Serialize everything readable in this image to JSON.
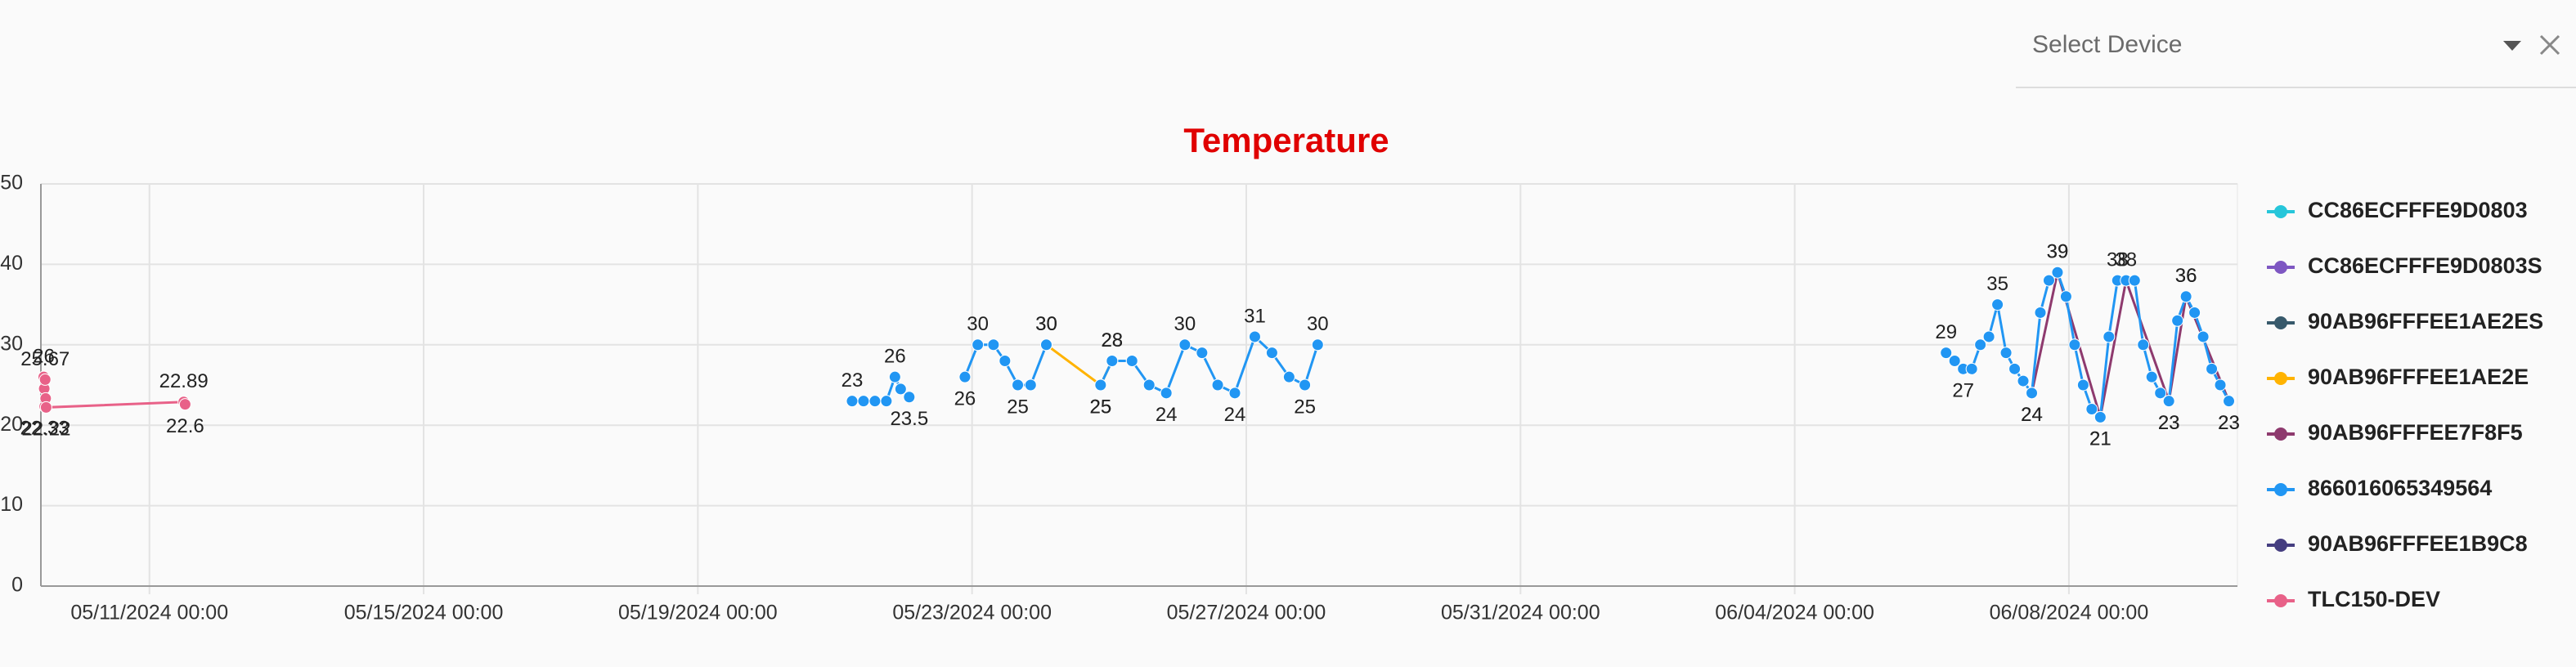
{
  "select_device": {
    "placeholder": "Select Device"
  },
  "chart_data": {
    "type": "line",
    "title": "Temperature",
    "ylim": [
      0,
      50
    ],
    "yticks": [
      0,
      10,
      20,
      30,
      40,
      50
    ],
    "grid": true,
    "xlim": [
      "05/09/2024 10:00",
      "06/10/2024 11:00"
    ],
    "xticks": [
      "05/11/2024 00:00",
      "05/15/2024 00:00",
      "05/19/2024 00:00",
      "05/23/2024 00:00",
      "05/27/2024 00:00",
      "05/31/2024 00:00",
      "06/04/2024 00:00",
      "06/08/2024 00:00"
    ],
    "legend": "right",
    "series": [
      {
        "name": "CC86ECFFFE9D0803",
        "color": "#26c6da",
        "x": [],
        "values": []
      },
      {
        "name": "CC86ECFFFE9D0803S",
        "color": "#7e57c2",
        "x": [],
        "values": []
      },
      {
        "name": "90AB96FFFEE1AE2ES",
        "color": "#37596b",
        "x": [],
        "values": []
      },
      {
        "name": "90AB96FFFEE1AE2E",
        "color": "#ffb300",
        "x": [
          "05/24/2024 02:00",
          "05/24/2024 21:00",
          "05/25/2024 01:00",
          "05/25/2024 08:00"
        ],
        "values": [
          30,
          25,
          28,
          28
        ]
      },
      {
        "name": "90AB96FFFEE7F8F5",
        "color": "#8e3a6e",
        "x": [
          "06/07/2024 11:00",
          "06/07/2024 20:00",
          "06/08/2024 11:00",
          "06/08/2024 20:00",
          "06/09/2024 11:00",
          "06/09/2024 17:00",
          "06/10/2024 08:00"
        ],
        "values": [
          24,
          39,
          21,
          38,
          23,
          36,
          23
        ]
      },
      {
        "name": "866016065349564",
        "color": "#2196f3",
        "x": [
          "05/21/2024 06:00",
          "05/21/2024 10:00",
          "05/21/2024 14:00",
          "05/21/2024 18:00",
          "05/21/2024 21:00",
          "05/21/2024 23:00",
          "05/22/2024 02:00",
          "05/22/2024 12:00",
          "05/22/2024 21:30",
          "05/23/2024 02:00",
          "05/23/2024 07:30",
          "05/23/2024 11:30",
          "05/23/2024 16:00",
          "05/23/2024 20:30",
          "05/24/2024 02:00",
          "05/24/2024 12:00",
          "05/24/2024 21:00",
          "05/25/2024 01:00",
          "05/25/2024 08:00",
          "05/25/2024 14:00",
          "05/25/2024 20:00",
          "05/26/2024 02:30",
          "05/26/2024 08:30",
          "05/26/2024 14:00",
          "05/26/2024 20:00",
          "05/27/2024 03:00",
          "05/27/2024 09:00",
          "05/27/2024 15:00",
          "05/27/2024 20:30",
          "05/28/2024 01:00",
          "06/02/2024 00:00",
          "06/06/2024 05:00",
          "06/06/2024 08:00",
          "06/06/2024 11:00",
          "06/06/2024 14:00",
          "06/06/2024 17:00",
          "06/06/2024 20:00",
          "06/06/2024 23:00",
          "06/07/2024 02:00",
          "06/07/2024 05:00",
          "06/07/2024 08:00",
          "06/07/2024 11:00",
          "06/07/2024 14:00",
          "06/07/2024 17:00",
          "06/07/2024 20:00",
          "06/07/2024 23:00",
          "06/08/2024 02:00",
          "06/08/2024 05:00",
          "06/08/2024 08:00",
          "06/08/2024 11:00",
          "06/08/2024 14:00",
          "06/08/2024 17:00",
          "06/08/2024 20:00",
          "06/08/2024 23:00",
          "06/09/2024 02:00",
          "06/09/2024 05:00",
          "06/09/2024 08:00",
          "06/09/2024 11:00",
          "06/09/2024 14:00",
          "06/09/2024 17:00",
          "06/09/2024 20:00",
          "06/09/2024 23:00",
          "06/10/2024 02:00",
          "06/10/2024 05:00",
          "06/10/2024 08:00"
        ],
        "values": [
          23,
          23,
          23,
          23,
          26,
          24.5,
          23.5,
          null,
          26,
          30,
          30,
          28,
          25,
          25,
          30,
          null,
          25,
          28,
          28,
          25,
          24,
          30,
          29,
          25,
          24,
          31,
          29,
          26,
          25,
          30,
          null,
          29,
          28,
          27,
          27,
          30,
          31,
          35,
          29,
          27,
          25.5,
          24,
          34,
          38,
          39,
          36,
          30,
          25,
          22,
          21,
          31,
          38,
          38,
          38,
          30,
          26,
          24,
          23,
          33,
          36,
          34,
          31,
          27,
          25,
          23
        ]
      },
      {
        "name": "90AB96FFFEE1B9C8",
        "color": "#453e80",
        "x": [],
        "values": []
      },
      {
        "name": "TLC150-DEV",
        "color": "#e86188",
        "x": [
          "05/09/2024 11:00",
          "05/09/2024 11:10",
          "05/09/2024 11:20",
          "05/09/2024 11:30",
          "05/09/2024 11:40",
          "05/09/2024 11:50",
          "05/11/2024 12:00",
          "05/11/2024 12:30"
        ],
        "values": [
          26,
          24.55,
          22.33,
          25.67,
          23.33,
          22.22,
          22.89,
          22.6
        ]
      }
    ]
  }
}
